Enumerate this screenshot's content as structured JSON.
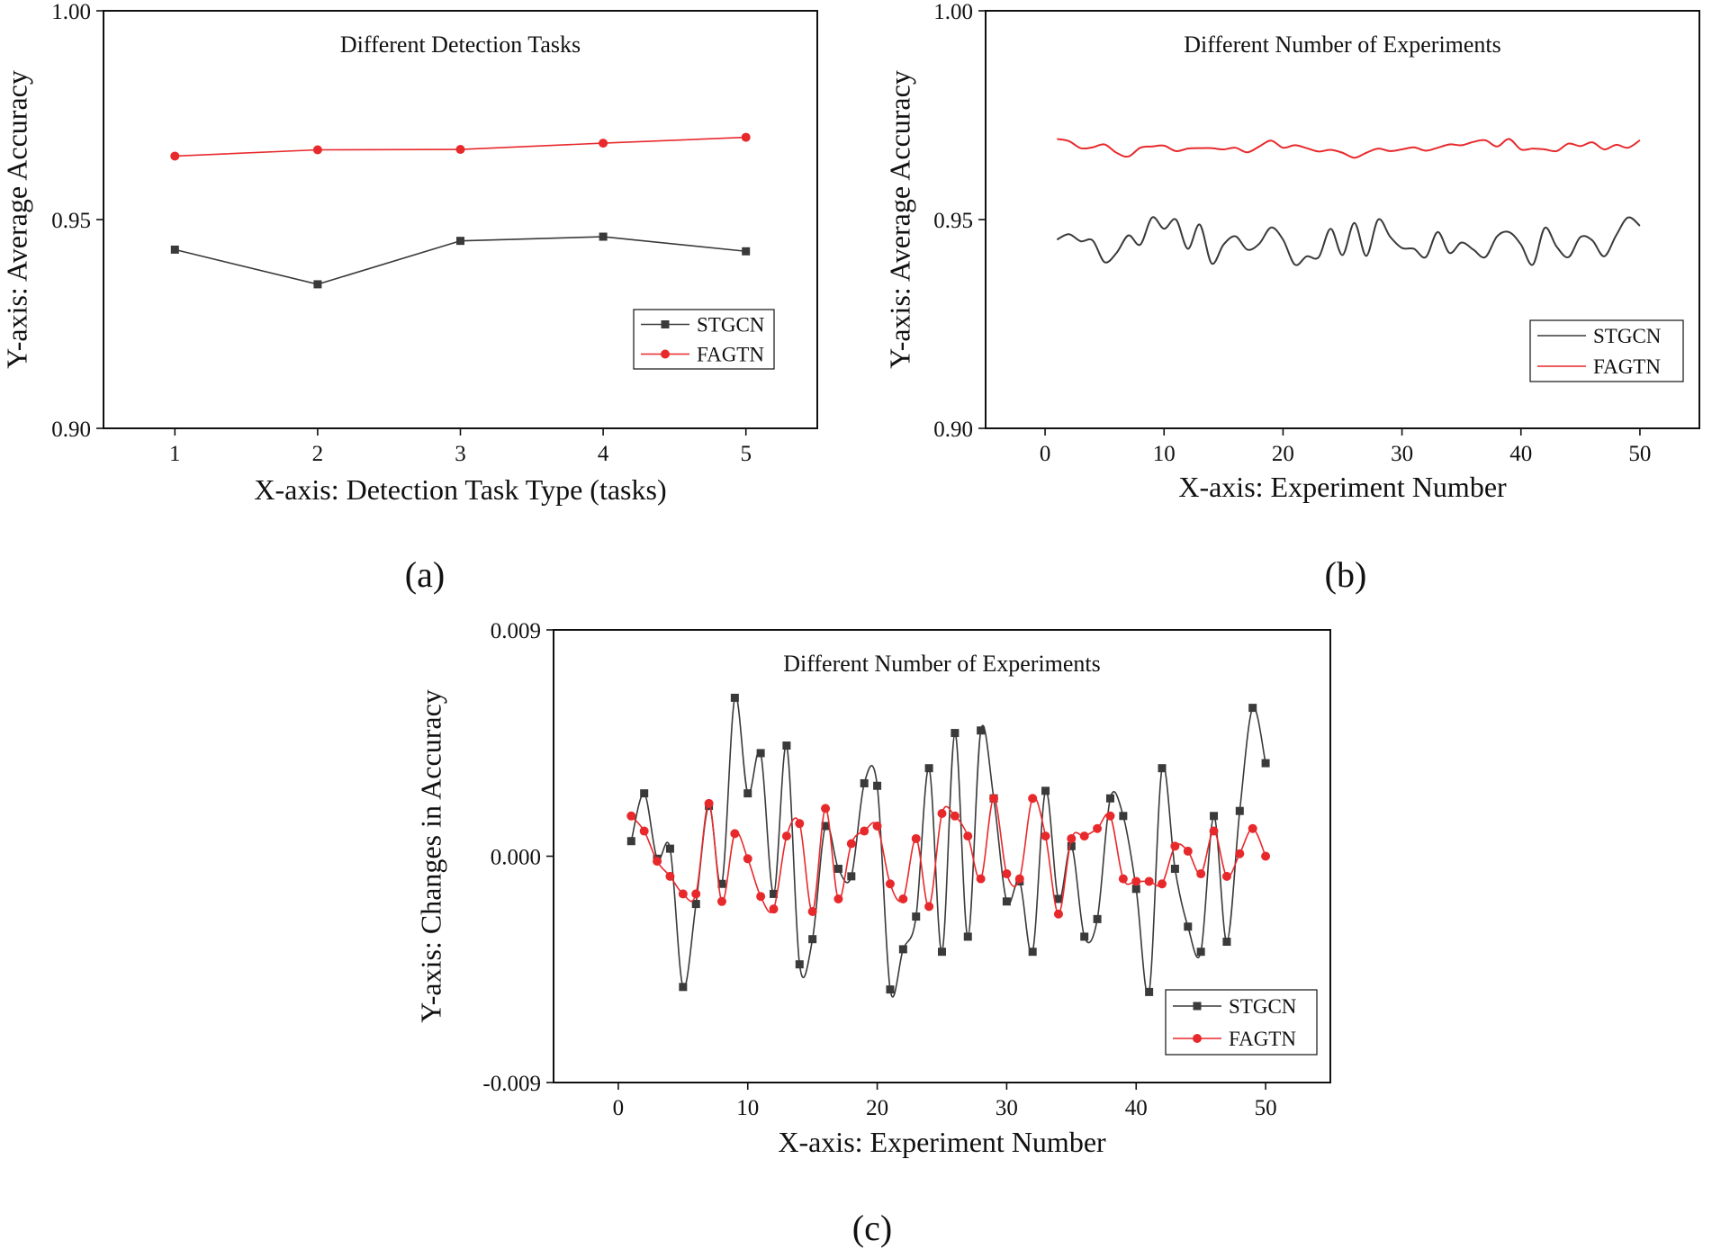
{
  "colors": {
    "STGCN": "#3a3a3a",
    "FAGTN": "#e8292c",
    "axis": "#111111"
  },
  "chart_data": [
    {
      "panel_label": "(a)",
      "type": "line",
      "title": "Different Detection Tasks",
      "xlabel": "X-axis: Detection Task Type (tasks)",
      "ylabel": "Y-axis: Average Accuracy",
      "xlim": [
        0.5,
        5.5
      ],
      "ylim": [
        0.9,
        1.0
      ],
      "xticks": [
        1,
        2,
        3,
        4,
        5
      ],
      "yticks": [
        0.9,
        0.95,
        1.0
      ],
      "ytick_labels": [
        "0.90",
        "0.95",
        "1.00"
      ],
      "legend_position": "lower-right",
      "markers": true,
      "smooth": false,
      "x": [
        1,
        2,
        3,
        4,
        5
      ],
      "series": [
        {
          "name": "STGCN",
          "marker": "square",
          "values": [
            0.9428,
            0.9345,
            0.9449,
            0.9459,
            0.9424
          ]
        },
        {
          "name": "FAGTN",
          "marker": "circle",
          "values": [
            0.9652,
            0.9667,
            0.9668,
            0.9683,
            0.9697
          ]
        }
      ]
    },
    {
      "panel_label": "(b)",
      "type": "line",
      "title": "Different Number of Experiments",
      "xlabel": "X-axis: Experiment Number",
      "ylabel": "Y-axis: Average Accuracy",
      "xlim": [
        -5,
        55
      ],
      "ylim": [
        0.9,
        1.0
      ],
      "xticks": [
        0,
        10,
        20,
        30,
        40,
        50
      ],
      "yticks": [
        0.9,
        0.95,
        1.0
      ],
      "ytick_labels": [
        "0.90",
        "0.95",
        "1.00"
      ],
      "legend_position": "lower-right",
      "markers": false,
      "smooth": true,
      "x": [
        1,
        2,
        3,
        4,
        5,
        6,
        7,
        8,
        9,
        10,
        11,
        12,
        13,
        14,
        15,
        16,
        17,
        18,
        19,
        20,
        21,
        22,
        23,
        24,
        25,
        26,
        27,
        28,
        29,
        30,
        31,
        32,
        33,
        34,
        35,
        36,
        37,
        38,
        39,
        40,
        41,
        42,
        43,
        44,
        45,
        46,
        47,
        48,
        49,
        50
      ],
      "series": [
        {
          "name": "STGCN",
          "marker": "none",
          "values": [
            0.9452,
            0.9465,
            0.9448,
            0.945,
            0.9398,
            0.942,
            0.9462,
            0.944,
            0.9505,
            0.9478,
            0.95,
            0.943,
            0.9488,
            0.9395,
            0.944,
            0.946,
            0.9428,
            0.9442,
            0.9481,
            0.9452,
            0.9392,
            0.9412,
            0.941,
            0.9478,
            0.9415,
            0.9492,
            0.9413,
            0.95,
            0.9459,
            0.9432,
            0.943,
            0.941,
            0.947,
            0.942,
            0.9445,
            0.9428,
            0.941,
            0.946,
            0.947,
            0.944,
            0.9392,
            0.948,
            0.9435,
            0.941,
            0.9458,
            0.945,
            0.9412,
            0.9462,
            0.9505,
            0.9485
          ]
        },
        {
          "name": "FAGTN",
          "marker": "none",
          "values": [
            0.9693,
            0.9688,
            0.9671,
            0.9673,
            0.968,
            0.966,
            0.9651,
            0.9672,
            0.9675,
            0.9677,
            0.9664,
            0.967,
            0.9671,
            0.9671,
            0.9668,
            0.9672,
            0.9661,
            0.9675,
            0.9689,
            0.9672,
            0.9678,
            0.9671,
            0.9663,
            0.9667,
            0.966,
            0.9648,
            0.966,
            0.967,
            0.9664,
            0.9668,
            0.9673,
            0.9665,
            0.9672,
            0.968,
            0.9678,
            0.9686,
            0.969,
            0.9675,
            0.9693,
            0.9668,
            0.967,
            0.9668,
            0.9664,
            0.9682,
            0.9676,
            0.9685,
            0.9668,
            0.9679,
            0.9672,
            0.969
          ]
        }
      ]
    },
    {
      "panel_label": "(c)",
      "type": "line",
      "title": "Different Number of Experiments",
      "xlabel": "X-axis: Experiment Number",
      "ylabel": "Y-axis: Changes in Accuracy",
      "xlim": [
        -5,
        55
      ],
      "ylim": [
        -0.009,
        0.009
      ],
      "xticks": [
        0,
        10,
        20,
        30,
        40,
        50
      ],
      "yticks": [
        -0.009,
        0.0,
        0.009
      ],
      "ytick_labels": [
        "-0.009",
        "0.000",
        "0.009"
      ],
      "legend_position": "lower-right",
      "markers": true,
      "smooth": true,
      "x": [
        1,
        2,
        3,
        4,
        5,
        6,
        7,
        8,
        9,
        10,
        11,
        12,
        13,
        14,
        15,
        16,
        17,
        18,
        19,
        20,
        21,
        22,
        23,
        24,
        25,
        26,
        27,
        28,
        29,
        30,
        31,
        32,
        33,
        34,
        35,
        36,
        37,
        38,
        39,
        40,
        41,
        42,
        43,
        44,
        45,
        46,
        47,
        48,
        49,
        50
      ],
      "series": [
        {
          "name": "STGCN",
          "marker": "square",
          "values": [
            0.0006,
            0.0025,
            -0.0001,
            0.0003,
            -0.0052,
            -0.0019,
            0.002,
            -0.0011,
            0.0063,
            0.0025,
            0.0041,
            -0.0015,
            0.0044,
            -0.0043,
            -0.0033,
            0.0012,
            -0.0005,
            -0.0008,
            0.0029,
            0.0028,
            -0.0053,
            -0.0037,
            -0.0024,
            0.0035,
            -0.0038,
            0.0049,
            -0.0032,
            0.005,
            0.0023,
            -0.0018,
            -0.001,
            -0.0038,
            0.0026,
            -0.0017,
            0.0004,
            -0.0032,
            -0.0025,
            0.0023,
            0.0016,
            -0.0013,
            -0.0054,
            0.0035,
            -0.0005,
            -0.0028,
            -0.0038,
            0.0016,
            -0.0034,
            0.0018,
            0.0059,
            0.0037
          ]
        },
        {
          "name": "FAGTN",
          "marker": "circle",
          "values": [
            0.0016,
            0.001,
            -0.0002,
            -0.0008,
            -0.0015,
            -0.0015,
            0.0021,
            -0.0018,
            0.0009,
            -0.0001,
            -0.0016,
            -0.0021,
            0.0008,
            0.0013,
            -0.0022,
            0.0019,
            -0.0017,
            0.0005,
            0.001,
            0.0012,
            -0.0011,
            -0.0017,
            0.0007,
            -0.002,
            0.0017,
            0.0016,
            0.0008,
            -0.0009,
            0.0023,
            -0.0007,
            -0.0009,
            0.0023,
            0.0008,
            -0.0023,
            0.0007,
            0.0008,
            0.0011,
            0.0016,
            -0.0009,
            -0.001,
            -0.001,
            -0.0011,
            0.0004,
            0.0002,
            -0.0007,
            0.001,
            -0.0008,
            0.0001,
            0.0011,
            0.0
          ]
        }
      ]
    }
  ]
}
